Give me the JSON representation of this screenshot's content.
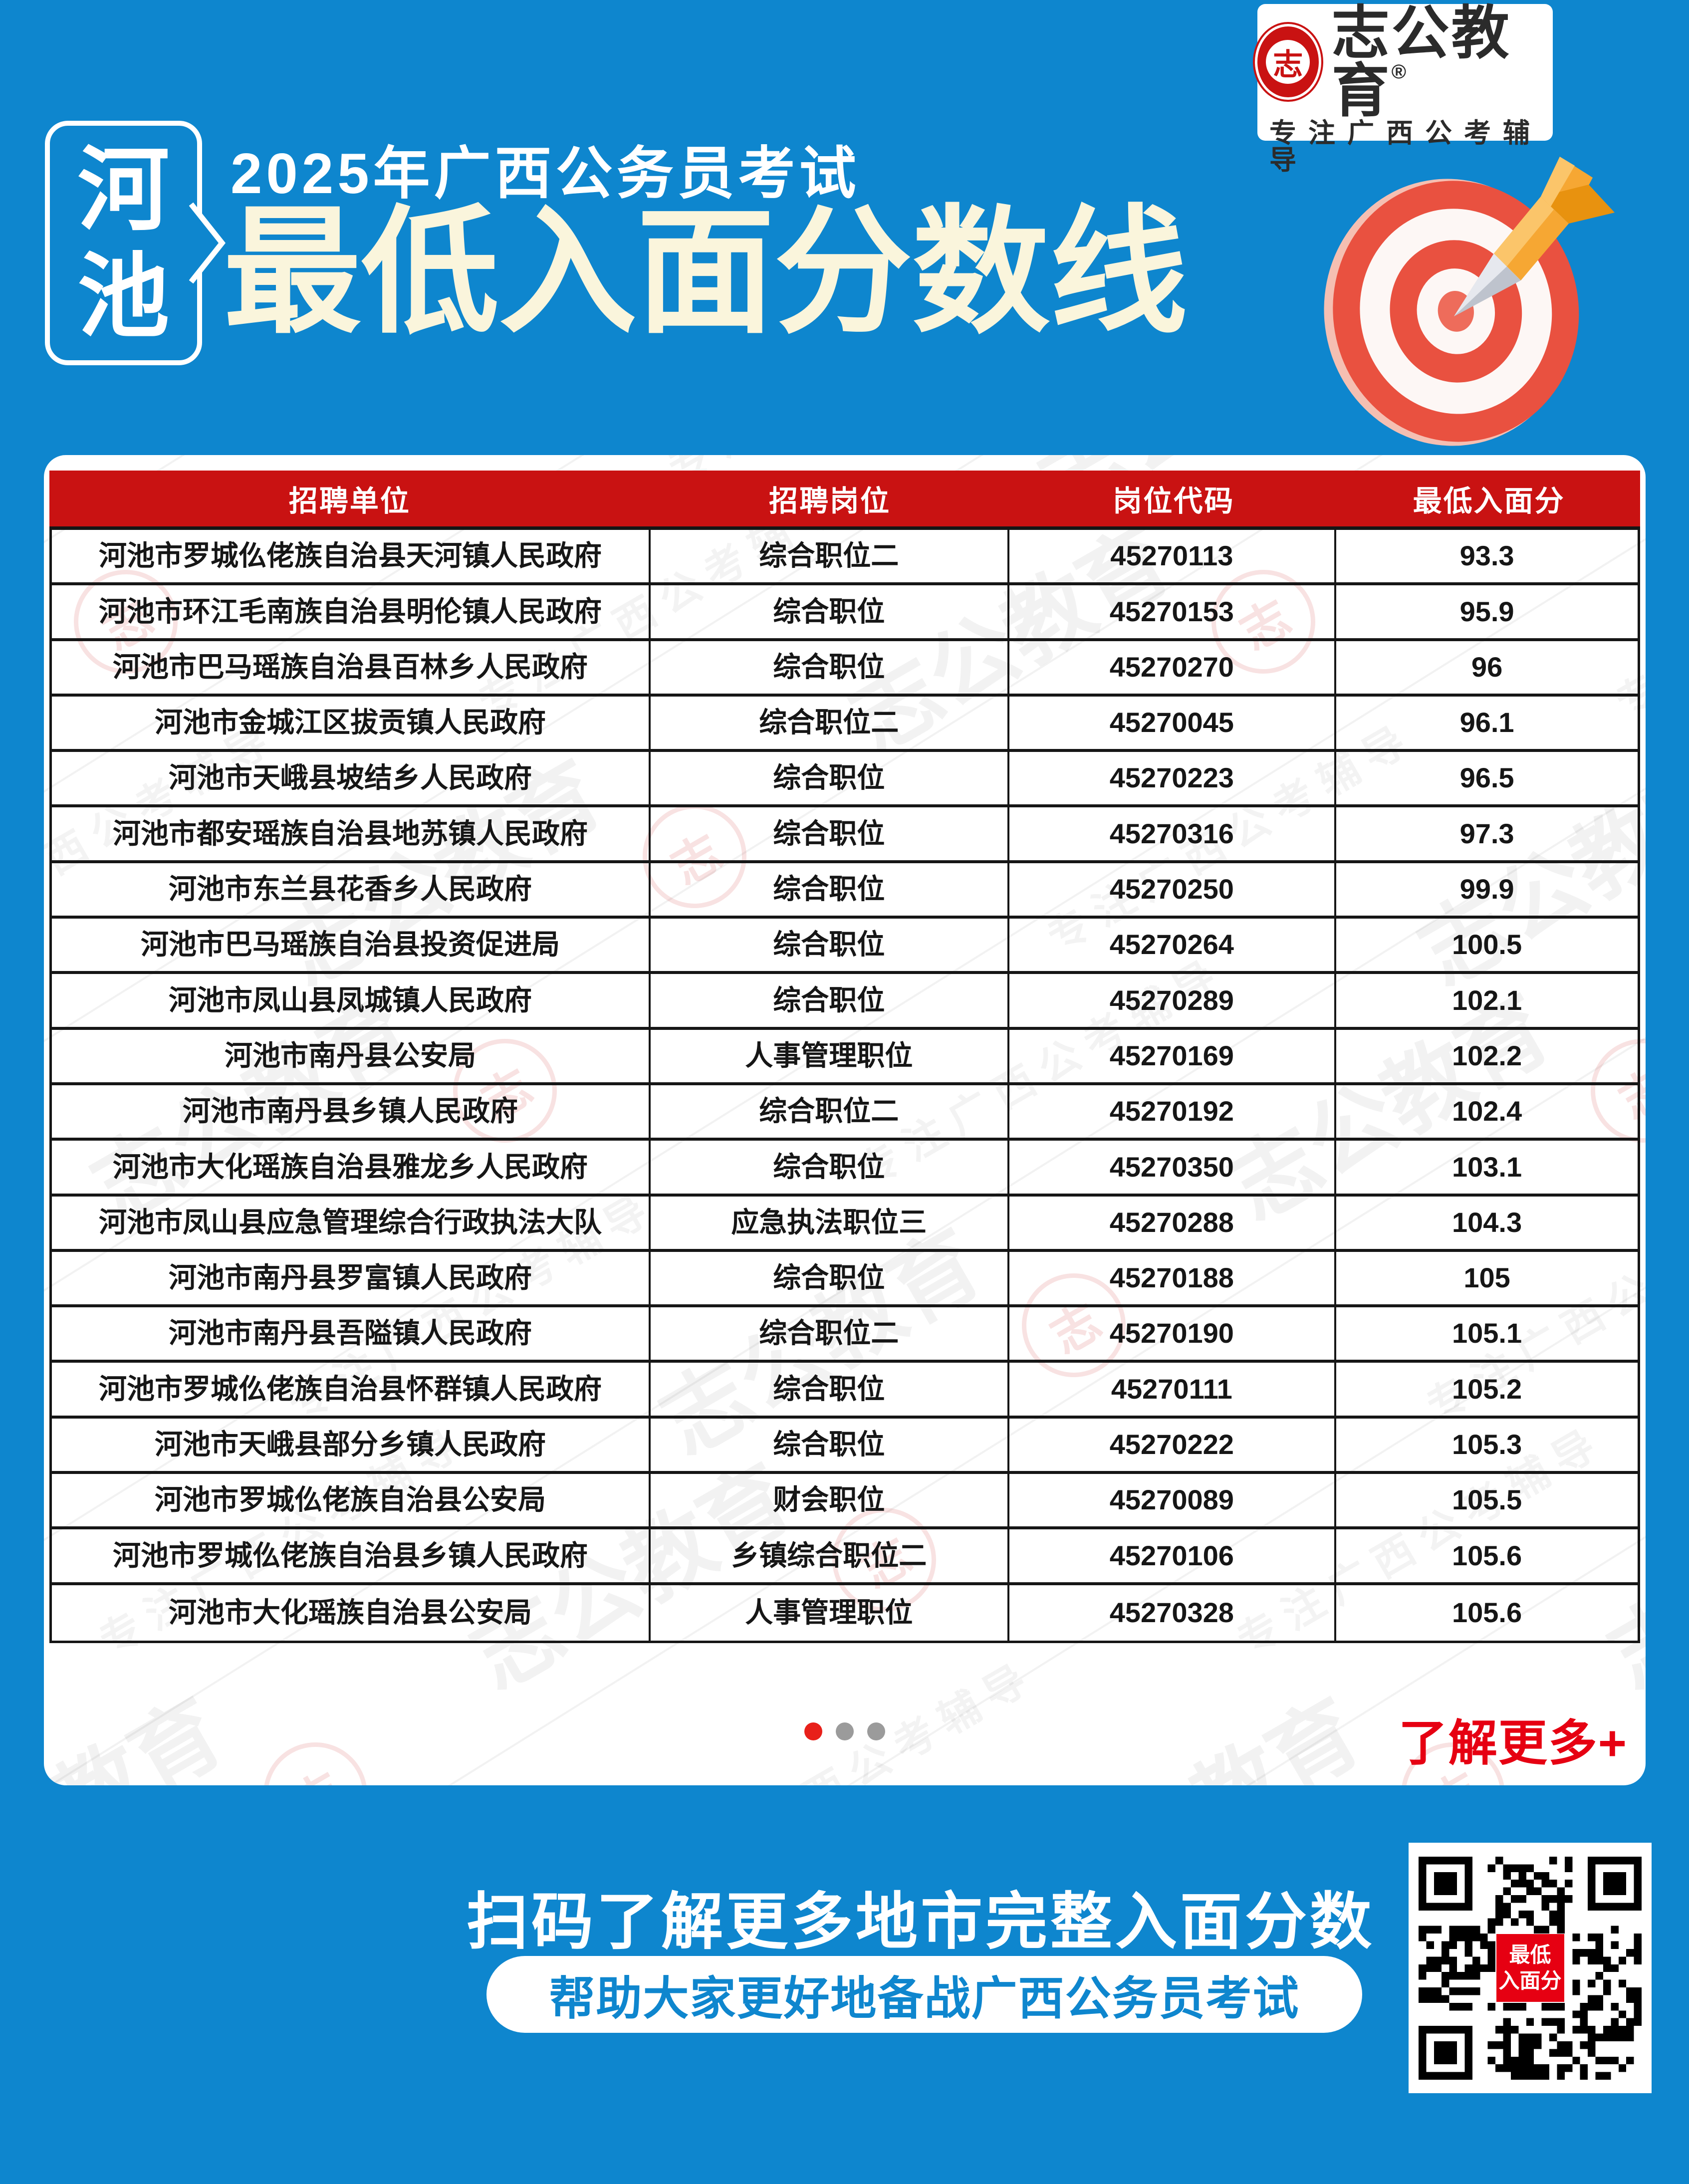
{
  "brand": {
    "name": "志公教育",
    "reg": "®",
    "tagline": "专注广西公考辅导",
    "seal_char": "志"
  },
  "header": {
    "city_char1": "河",
    "city_char2": "池",
    "subtitle": "2025年广西公务员考试",
    "title": "最低入面分数线"
  },
  "colors": {
    "background_blue": "#0E86CE",
    "header_red": "#C91212",
    "title_cream": "#FAF5DC",
    "accent_red": "#E60012",
    "dot_gray": "#9B9B9B"
  },
  "table": {
    "columns": [
      "招聘单位",
      "招聘岗位",
      "岗位代码",
      "最低入面分"
    ],
    "rows": [
      {
        "unit": "河池市罗城仫佬族自治县天河镇人民政府",
        "position": "综合职位二",
        "code": "45270113",
        "score": "93.3"
      },
      {
        "unit": "河池市环江毛南族自治县明伦镇人民政府",
        "position": "综合职位",
        "code": "45270153",
        "score": "95.9"
      },
      {
        "unit": "河池市巴马瑶族自治县百林乡人民政府",
        "position": "综合职位",
        "code": "45270270",
        "score": "96"
      },
      {
        "unit": "河池市金城江区拔贡镇人民政府",
        "position": "综合职位二",
        "code": "45270045",
        "score": "96.1"
      },
      {
        "unit": "河池市天峨县坡结乡人民政府",
        "position": "综合职位",
        "code": "45270223",
        "score": "96.5"
      },
      {
        "unit": "河池市都安瑶族自治县地苏镇人民政府",
        "position": "综合职位",
        "code": "45270316",
        "score": "97.3"
      },
      {
        "unit": "河池市东兰县花香乡人民政府",
        "position": "综合职位",
        "code": "45270250",
        "score": "99.9"
      },
      {
        "unit": "河池市巴马瑶族自治县投资促进局",
        "position": "综合职位",
        "code": "45270264",
        "score": "100.5"
      },
      {
        "unit": "河池市凤山县凤城镇人民政府",
        "position": "综合职位",
        "code": "45270289",
        "score": "102.1"
      },
      {
        "unit": "河池市南丹县公安局",
        "position": "人事管理职位",
        "code": "45270169",
        "score": "102.2"
      },
      {
        "unit": "河池市南丹县乡镇人民政府",
        "position": "综合职位二",
        "code": "45270192",
        "score": "102.4"
      },
      {
        "unit": "河池市大化瑶族自治县雅龙乡人民政府",
        "position": "综合职位",
        "code": "45270350",
        "score": "103.1"
      },
      {
        "unit": "河池市凤山县应急管理综合行政执法大队",
        "position": "应急执法职位三",
        "code": "45270288",
        "score": "104.3"
      },
      {
        "unit": "河池市南丹县罗富镇人民政府",
        "position": "综合职位",
        "code": "45270188",
        "score": "105"
      },
      {
        "unit": "河池市南丹县吾隘镇人民政府",
        "position": "综合职位二",
        "code": "45270190",
        "score": "105.1"
      },
      {
        "unit": "河池市罗城仫佬族自治县怀群镇人民政府",
        "position": "综合职位",
        "code": "45270111",
        "score": "105.2"
      },
      {
        "unit": "河池市天峨县部分乡镇人民政府",
        "position": "综合职位",
        "code": "45270222",
        "score": "105.3"
      },
      {
        "unit": "河池市罗城仫佬族自治县公安局",
        "position": "财会职位",
        "code": "45270089",
        "score": "105.5"
      },
      {
        "unit": "河池市罗城仫佬族自治县乡镇人民政府",
        "position": "乡镇综合职位二",
        "code": "45270106",
        "score": "105.6"
      },
      {
        "unit": "河池市大化瑶族自治县公安局",
        "position": "人事管理职位",
        "code": "45270328",
        "score": "105.6"
      }
    ]
  },
  "pagination": {
    "dot_count": 3,
    "active_index": 0
  },
  "more_link": "了解更多+",
  "footer": {
    "line1": "扫码了解更多地市完整入面分数",
    "pill": "帮助大家更好地备战广西公务员考试",
    "qr_label_line1": "最低",
    "qr_label_line2": "入面分"
  },
  "watermark": {
    "text": "志公教育",
    "subtext": "专注广西公考辅导",
    "seal_char": "志"
  }
}
